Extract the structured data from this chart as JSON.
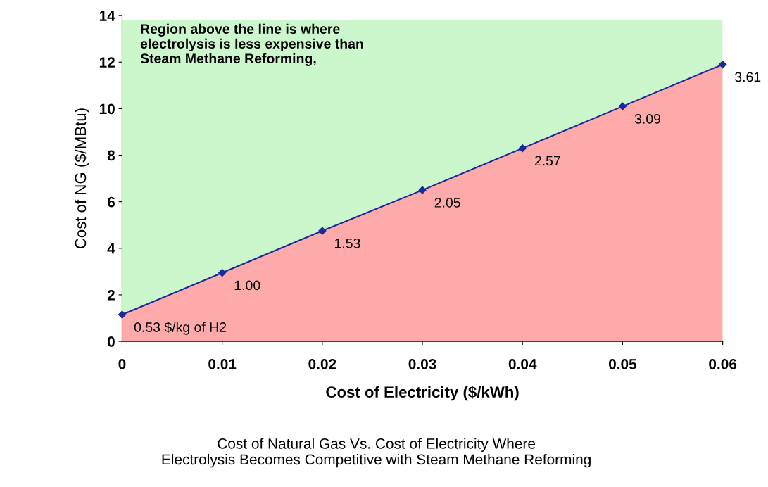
{
  "chart_data": {
    "type": "line",
    "xlabel": "Cost of Electricity ($/kWh)",
    "ylabel": "Cost of NG ($/MBtu)",
    "x": [
      0,
      0.01,
      0.02,
      0.03,
      0.04,
      0.05,
      0.06
    ],
    "series": [
      {
        "type": "area",
        "color": "#ffaaaa",
        "values": [
          1.15,
          2.95,
          4.75,
          6.5,
          8.3,
          10.1,
          11.9
        ]
      },
      {
        "color": "#1a2a9a",
        "marker": "diamond",
        "values": [
          1.15,
          2.95,
          4.75,
          6.5,
          8.3,
          10.1,
          11.9
        ]
      }
    ],
    "bands": [
      {
        "axis": "y",
        "from": 0,
        "to": 13.8,
        "color": "#ccf7cc"
      }
    ],
    "annotations": [
      "Region above the line is where\nelectrolysis is less expensive than\nSteam Methane Reforming,",
      "Cost of Natural Gas Vs. Cost of Electricity Where\nElectrolysis Becomes Competitive with Steam Methane Reforming",
      {
        "text": "0.53 $/kg of H2",
        "x": 0,
        "y": 1.15
      },
      {
        "text": "1.00",
        "x": 0.01,
        "y": 2.95
      },
      {
        "text": "1.53",
        "x": 0.02,
        "y": 4.75
      },
      {
        "text": "2.05",
        "x": 0.03,
        "y": 6.5
      },
      {
        "text": "2.57",
        "x": 0.04,
        "y": 8.3
      },
      {
        "text": "3.09",
        "x": 0.05,
        "y": 10.1
      },
      {
        "text": "3.61",
        "x": 0.06,
        "y": 11.9
      }
    ],
    "xlim": [
      0,
      0.06
    ],
    "ylim": [
      0,
      14
    ],
    "xticks": [
      0,
      0.01,
      0.02,
      0.03,
      0.04,
      0.05,
      0.06
    ],
    "yticks": [
      0,
      2,
      4,
      6,
      8,
      10,
      12,
      14
    ],
    "grid": false,
    "legend": false
  }
}
